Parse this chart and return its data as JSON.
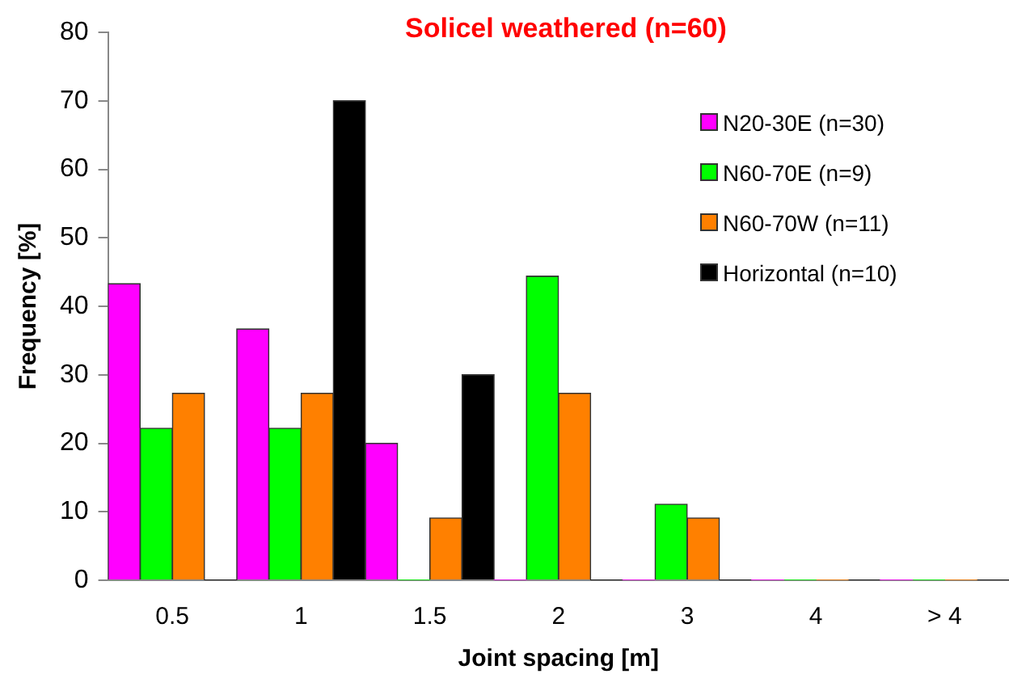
{
  "chart_data": {
    "type": "bar",
    "title": "Solicel weathered (n=60)",
    "xlabel": "Joint spacing [m]",
    "ylabel": "Frequency [%]",
    "categories": [
      "0.5",
      "1",
      "1.5",
      "2",
      "3",
      "4",
      "> 4"
    ],
    "series": [
      {
        "name": "N20-30E (n=30)",
        "color": "#ff00ff",
        "values": [
          43.3,
          36.7,
          20,
          0,
          0,
          0,
          0
        ]
      },
      {
        "name": "N60-70E (n=9)",
        "color": "#00ff00",
        "values": [
          22.2,
          22.2,
          0,
          44.4,
          11.1,
          0,
          0
        ]
      },
      {
        "name": "N60-70W (n=11)",
        "color": "#ff8000",
        "values": [
          27.3,
          27.3,
          9.1,
          27.3,
          9.1,
          0,
          0
        ]
      },
      {
        "name": "Horizontal (n=10)",
        "color": "#000000",
        "values": [
          0,
          70,
          30,
          0,
          0,
          0,
          0
        ]
      }
    ],
    "ylim": [
      0,
      80
    ],
    "yticks": [
      0,
      10,
      20,
      30,
      40,
      50,
      60,
      70,
      80
    ],
    "grid": false,
    "legend": "top right"
  }
}
